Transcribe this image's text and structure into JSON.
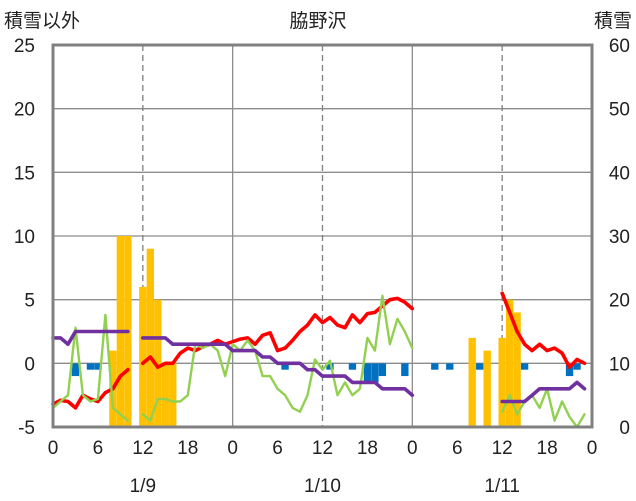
{
  "chart_data": {
    "type": "combo",
    "title": "脇野沢",
    "left_axis_label": "積雪以外",
    "right_axis_label": "積雪",
    "ylim_left": [
      -5,
      25
    ],
    "yticks_left": [
      "25",
      "20",
      "15",
      "10",
      "5",
      "0",
      "-5"
    ],
    "ylim_right": [
      0,
      60
    ],
    "yticks_right": [
      "60",
      "50",
      "40",
      "30",
      "20",
      "10",
      "0"
    ],
    "xlim": [
      0,
      72
    ],
    "xtick_labels": [
      "0",
      "6",
      "12",
      "18",
      "0",
      "6",
      "12",
      "18",
      "0",
      "6",
      "12",
      "18",
      "0"
    ],
    "date_labels": [
      {
        "label": "1/9",
        "hour": 12
      },
      {
        "label": "1/10",
        "hour": 36
      },
      {
        "label": "1/11",
        "hour": 60
      }
    ],
    "colors": {
      "snow_depth": "#ffc000",
      "precipitation": "#0070c0",
      "temperature": "#ff0000",
      "wind": "#92d050",
      "sunshine": "#7030a0"
    },
    "series": [
      {
        "key": "snow_depth",
        "kind": "bar",
        "axis": "right",
        "points": [
          [
            8,
            12
          ],
          [
            9,
            30
          ],
          [
            10,
            30
          ],
          [
            12,
            22
          ],
          [
            13,
            28
          ],
          [
            14,
            20
          ],
          [
            15,
            10
          ],
          [
            16,
            10
          ],
          [
            56,
            14
          ],
          [
            58,
            12
          ],
          [
            60,
            14
          ],
          [
            61,
            20
          ],
          [
            62,
            18
          ]
        ]
      },
      {
        "key": "precipitation",
        "kind": "bar",
        "axis": "left",
        "points": [
          [
            3,
            -1
          ],
          [
            5,
            -0.5
          ],
          [
            6,
            -0.5
          ],
          [
            31,
            -0.5
          ],
          [
            37,
            -0.5
          ],
          [
            40,
            -0.5
          ],
          [
            42,
            -1.5
          ],
          [
            43,
            -1.5
          ],
          [
            44,
            -1
          ],
          [
            47,
            -1
          ],
          [
            51,
            -0.5
          ],
          [
            53,
            -0.5
          ],
          [
            57,
            -0.5
          ],
          [
            63,
            -0.5
          ],
          [
            69,
            -1
          ],
          [
            70,
            -0.5
          ]
        ]
      },
      {
        "key": "temperature",
        "kind": "line",
        "axis": "left",
        "segments": [
          [
            [
              0,
              -3.2
            ],
            [
              1,
              -2.9
            ],
            [
              2,
              -3.0
            ],
            [
              3,
              -3.5
            ],
            [
              4,
              -2.5
            ],
            [
              5,
              -2.8
            ],
            [
              6,
              -3.0
            ],
            [
              7,
              -2.3
            ],
            [
              8,
              -2.0
            ],
            [
              9,
              -1.0
            ],
            [
              10,
              -0.5
            ]
          ],
          [
            [
              12,
              0
            ],
            [
              13,
              0.5
            ],
            [
              14,
              -0.3
            ],
            [
              15,
              0
            ],
            [
              16,
              0
            ],
            [
              17,
              0.8
            ],
            [
              18,
              1.2
            ],
            [
              19,
              1.0
            ],
            [
              20,
              1.3
            ],
            [
              21,
              1.5
            ],
            [
              22,
              1.8
            ],
            [
              23,
              1.5
            ],
            [
              24,
              1.7
            ],
            [
              25,
              1.9
            ],
            [
              26,
              2.0
            ],
            [
              27,
              1.5
            ],
            [
              28,
              2.2
            ],
            [
              29,
              2.4
            ],
            [
              30,
              1.0
            ],
            [
              31,
              1.2
            ],
            [
              32,
              1.8
            ],
            [
              33,
              2.5
            ],
            [
              34,
              3.0
            ],
            [
              35,
              3.8
            ],
            [
              36,
              3.2
            ],
            [
              37,
              3.6
            ],
            [
              38,
              3.0
            ],
            [
              39,
              2.8
            ],
            [
              40,
              3.8
            ],
            [
              41,
              3.2
            ],
            [
              42,
              3.9
            ],
            [
              43,
              4.0
            ],
            [
              44,
              4.5
            ],
            [
              45,
              5.0
            ],
            [
              46,
              5.1
            ],
            [
              47,
              4.8
            ],
            [
              48,
              4.3
            ]
          ],
          [
            [
              60,
              5.5
            ],
            [
              61,
              4.0
            ],
            [
              62,
              2.5
            ],
            [
              63,
              1.5
            ],
            [
              64,
              1.0
            ],
            [
              65,
              1.5
            ],
            [
              66,
              1.0
            ],
            [
              67,
              1.2
            ],
            [
              68,
              0.8
            ],
            [
              69,
              -0.3
            ],
            [
              70,
              0.3
            ],
            [
              71,
              0
            ]
          ]
        ]
      },
      {
        "key": "wind",
        "kind": "line",
        "axis": "left",
        "segments": [
          [
            [
              0,
              -3.5
            ],
            [
              1,
              -3.0
            ],
            [
              2,
              -2.5
            ],
            [
              3,
              2.8
            ],
            [
              4,
              -2.5
            ],
            [
              5,
              -3.0
            ],
            [
              6,
              -2.8
            ],
            [
              7,
              3.8
            ],
            [
              8,
              -3.5
            ],
            [
              9,
              -4.0
            ],
            [
              10,
              -4.5
            ]
          ],
          [
            [
              12,
              -4.0
            ],
            [
              13,
              -4.5
            ],
            [
              14,
              -2.8
            ],
            [
              15,
              -2.8
            ],
            [
              16,
              -3.0
            ],
            [
              17,
              -3.0
            ],
            [
              18,
              -2.5
            ],
            [
              19,
              1.5
            ],
            [
              20,
              1.2
            ],
            [
              21,
              1.5
            ],
            [
              22,
              1.0
            ],
            [
              23,
              -1.0
            ],
            [
              24,
              1.5
            ],
            [
              25,
              1.0
            ],
            [
              26,
              1.8
            ],
            [
              27,
              1.0
            ],
            [
              28,
              -1.0
            ],
            [
              29,
              -1.0
            ],
            [
              30,
              -2.0
            ],
            [
              31,
              -2.5
            ],
            [
              32,
              -3.5
            ],
            [
              33,
              -3.8
            ],
            [
              34,
              -2.5
            ],
            [
              35,
              0.3
            ],
            [
              36,
              -0.5
            ],
            [
              37,
              0.2
            ],
            [
              38,
              -2.5
            ],
            [
              39,
              -1.5
            ],
            [
              40,
              -2.5
            ],
            [
              41,
              -2.0
            ],
            [
              42,
              2.0
            ],
            [
              43,
              1.0
            ],
            [
              44,
              5.3
            ],
            [
              45,
              1.5
            ],
            [
              46,
              3.5
            ],
            [
              47,
              2.5
            ],
            [
              48,
              1.2
            ]
          ],
          [
            [
              60,
              -3.8
            ],
            [
              61,
              -2.5
            ],
            [
              62,
              -4.0
            ],
            [
              63,
              -3.0
            ],
            [
              64,
              -2.5
            ],
            [
              65,
              -3.5
            ],
            [
              66,
              -2.0
            ],
            [
              67,
              -4.5
            ],
            [
              68,
              -3.0
            ],
            [
              69,
              -4.2
            ],
            [
              70,
              -5.0
            ],
            [
              71,
              -4.0
            ]
          ]
        ]
      },
      {
        "key": "sunshine",
        "kind": "line",
        "axis": "left",
        "segments": [
          [
            [
              0,
              2.0
            ],
            [
              1,
              2.0
            ],
            [
              2,
              1.5
            ],
            [
              3,
              2.5
            ],
            [
              4,
              2.5
            ],
            [
              5,
              2.5
            ],
            [
              6,
              2.5
            ],
            [
              7,
              2.5
            ],
            [
              8,
              2.5
            ],
            [
              9,
              2.5
            ],
            [
              10,
              2.5
            ]
          ],
          [
            [
              12,
              2.0
            ],
            [
              13,
              2.0
            ],
            [
              14,
              2.0
            ],
            [
              15,
              2.0
            ],
            [
              16,
              1.5
            ],
            [
              17,
              1.5
            ],
            [
              18,
              1.5
            ],
            [
              19,
              1.5
            ],
            [
              20,
              1.5
            ],
            [
              21,
              1.5
            ],
            [
              22,
              1.5
            ],
            [
              23,
              1.5
            ],
            [
              24,
              1.0
            ],
            [
              25,
              1.0
            ],
            [
              26,
              1.0
            ],
            [
              27,
              1.0
            ],
            [
              28,
              0.5
            ],
            [
              29,
              0.5
            ],
            [
              30,
              0
            ],
            [
              31,
              0
            ],
            [
              32,
              0
            ],
            [
              33,
              0
            ],
            [
              34,
              -0.5
            ],
            [
              35,
              -0.5
            ],
            [
              36,
              -1.0
            ],
            [
              37,
              -1.0
            ],
            [
              38,
              -1.0
            ],
            [
              39,
              -1.0
            ],
            [
              40,
              -1.5
            ],
            [
              41,
              -1.5
            ],
            [
              42,
              -1.5
            ],
            [
              43,
              -1.5
            ],
            [
              44,
              -2.0
            ],
            [
              45,
              -2.0
            ],
            [
              46,
              -2.0
            ],
            [
              47,
              -2.0
            ],
            [
              48,
              -2.5
            ]
          ],
          [
            [
              60,
              -3.0
            ],
            [
              61,
              -3.0
            ],
            [
              62,
              -3.0
            ],
            [
              63,
              -3.0
            ],
            [
              64,
              -2.5
            ],
            [
              65,
              -2.0
            ],
            [
              66,
              -2.0
            ],
            [
              67,
              -2.0
            ],
            [
              68,
              -2.0
            ],
            [
              69,
              -2.0
            ],
            [
              70,
              -1.5
            ],
            [
              71,
              -2.0
            ]
          ]
        ]
      }
    ]
  }
}
